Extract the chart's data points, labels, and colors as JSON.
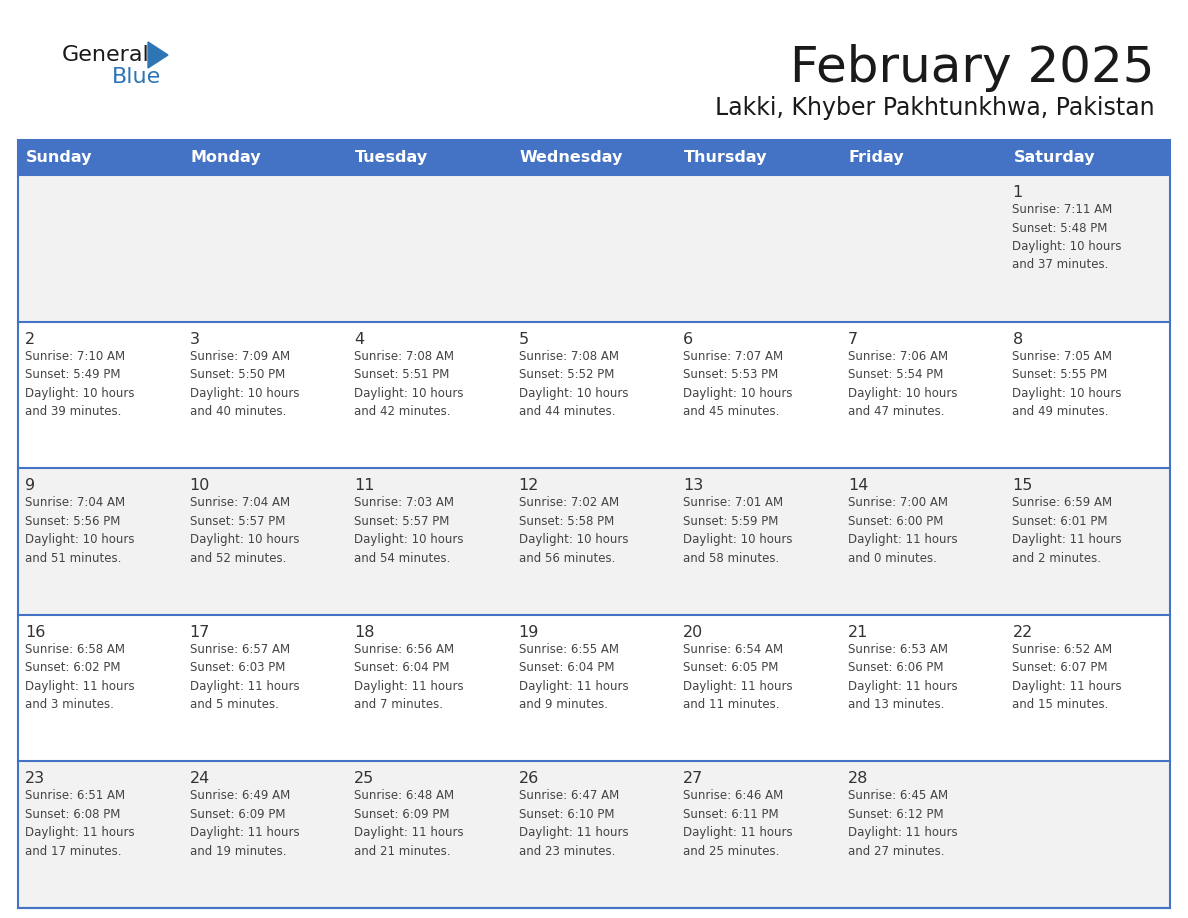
{
  "title": "February 2025",
  "subtitle": "Lakki, Khyber Pakhtunkhwa, Pakistan",
  "days_of_week": [
    "Sunday",
    "Monday",
    "Tuesday",
    "Wednesday",
    "Thursday",
    "Friday",
    "Saturday"
  ],
  "header_bg": "#4472C4",
  "header_text": "#FFFFFF",
  "row_bg_light": "#F2F2F2",
  "row_bg_white": "#FFFFFF",
  "border_color": "#4472C4",
  "day_num_color": "#333333",
  "cell_text_color": "#444444",
  "logo_general_color": "#1a1a1a",
  "logo_blue_color": "#2E75B6",
  "title_color": "#1a1a1a",
  "subtitle_color": "#1a1a1a",
  "row_backgrounds": [
    "#F2F2F2",
    "#FFFFFF",
    "#F2F2F2",
    "#FFFFFF",
    "#F2F2F2"
  ],
  "calendar_data": [
    [
      {
        "day": "",
        "info": ""
      },
      {
        "day": "",
        "info": ""
      },
      {
        "day": "",
        "info": ""
      },
      {
        "day": "",
        "info": ""
      },
      {
        "day": "",
        "info": ""
      },
      {
        "day": "",
        "info": ""
      },
      {
        "day": "1",
        "info": "Sunrise: 7:11 AM\nSunset: 5:48 PM\nDaylight: 10 hours\nand 37 minutes."
      }
    ],
    [
      {
        "day": "2",
        "info": "Sunrise: 7:10 AM\nSunset: 5:49 PM\nDaylight: 10 hours\nand 39 minutes."
      },
      {
        "day": "3",
        "info": "Sunrise: 7:09 AM\nSunset: 5:50 PM\nDaylight: 10 hours\nand 40 minutes."
      },
      {
        "day": "4",
        "info": "Sunrise: 7:08 AM\nSunset: 5:51 PM\nDaylight: 10 hours\nand 42 minutes."
      },
      {
        "day": "5",
        "info": "Sunrise: 7:08 AM\nSunset: 5:52 PM\nDaylight: 10 hours\nand 44 minutes."
      },
      {
        "day": "6",
        "info": "Sunrise: 7:07 AM\nSunset: 5:53 PM\nDaylight: 10 hours\nand 45 minutes."
      },
      {
        "day": "7",
        "info": "Sunrise: 7:06 AM\nSunset: 5:54 PM\nDaylight: 10 hours\nand 47 minutes."
      },
      {
        "day": "8",
        "info": "Sunrise: 7:05 AM\nSunset: 5:55 PM\nDaylight: 10 hours\nand 49 minutes."
      }
    ],
    [
      {
        "day": "9",
        "info": "Sunrise: 7:04 AM\nSunset: 5:56 PM\nDaylight: 10 hours\nand 51 minutes."
      },
      {
        "day": "10",
        "info": "Sunrise: 7:04 AM\nSunset: 5:57 PM\nDaylight: 10 hours\nand 52 minutes."
      },
      {
        "day": "11",
        "info": "Sunrise: 7:03 AM\nSunset: 5:57 PM\nDaylight: 10 hours\nand 54 minutes."
      },
      {
        "day": "12",
        "info": "Sunrise: 7:02 AM\nSunset: 5:58 PM\nDaylight: 10 hours\nand 56 minutes."
      },
      {
        "day": "13",
        "info": "Sunrise: 7:01 AM\nSunset: 5:59 PM\nDaylight: 10 hours\nand 58 minutes."
      },
      {
        "day": "14",
        "info": "Sunrise: 7:00 AM\nSunset: 6:00 PM\nDaylight: 11 hours\nand 0 minutes."
      },
      {
        "day": "15",
        "info": "Sunrise: 6:59 AM\nSunset: 6:01 PM\nDaylight: 11 hours\nand 2 minutes."
      }
    ],
    [
      {
        "day": "16",
        "info": "Sunrise: 6:58 AM\nSunset: 6:02 PM\nDaylight: 11 hours\nand 3 minutes."
      },
      {
        "day": "17",
        "info": "Sunrise: 6:57 AM\nSunset: 6:03 PM\nDaylight: 11 hours\nand 5 minutes."
      },
      {
        "day": "18",
        "info": "Sunrise: 6:56 AM\nSunset: 6:04 PM\nDaylight: 11 hours\nand 7 minutes."
      },
      {
        "day": "19",
        "info": "Sunrise: 6:55 AM\nSunset: 6:04 PM\nDaylight: 11 hours\nand 9 minutes."
      },
      {
        "day": "20",
        "info": "Sunrise: 6:54 AM\nSunset: 6:05 PM\nDaylight: 11 hours\nand 11 minutes."
      },
      {
        "day": "21",
        "info": "Sunrise: 6:53 AM\nSunset: 6:06 PM\nDaylight: 11 hours\nand 13 minutes."
      },
      {
        "day": "22",
        "info": "Sunrise: 6:52 AM\nSunset: 6:07 PM\nDaylight: 11 hours\nand 15 minutes."
      }
    ],
    [
      {
        "day": "23",
        "info": "Sunrise: 6:51 AM\nSunset: 6:08 PM\nDaylight: 11 hours\nand 17 minutes."
      },
      {
        "day": "24",
        "info": "Sunrise: 6:49 AM\nSunset: 6:09 PM\nDaylight: 11 hours\nand 19 minutes."
      },
      {
        "day": "25",
        "info": "Sunrise: 6:48 AM\nSunset: 6:09 PM\nDaylight: 11 hours\nand 21 minutes."
      },
      {
        "day": "26",
        "info": "Sunrise: 6:47 AM\nSunset: 6:10 PM\nDaylight: 11 hours\nand 23 minutes."
      },
      {
        "day": "27",
        "info": "Sunrise: 6:46 AM\nSunset: 6:11 PM\nDaylight: 11 hours\nand 25 minutes."
      },
      {
        "day": "28",
        "info": "Sunrise: 6:45 AM\nSunset: 6:12 PM\nDaylight: 11 hours\nand 27 minutes."
      },
      {
        "day": "",
        "info": ""
      }
    ]
  ]
}
